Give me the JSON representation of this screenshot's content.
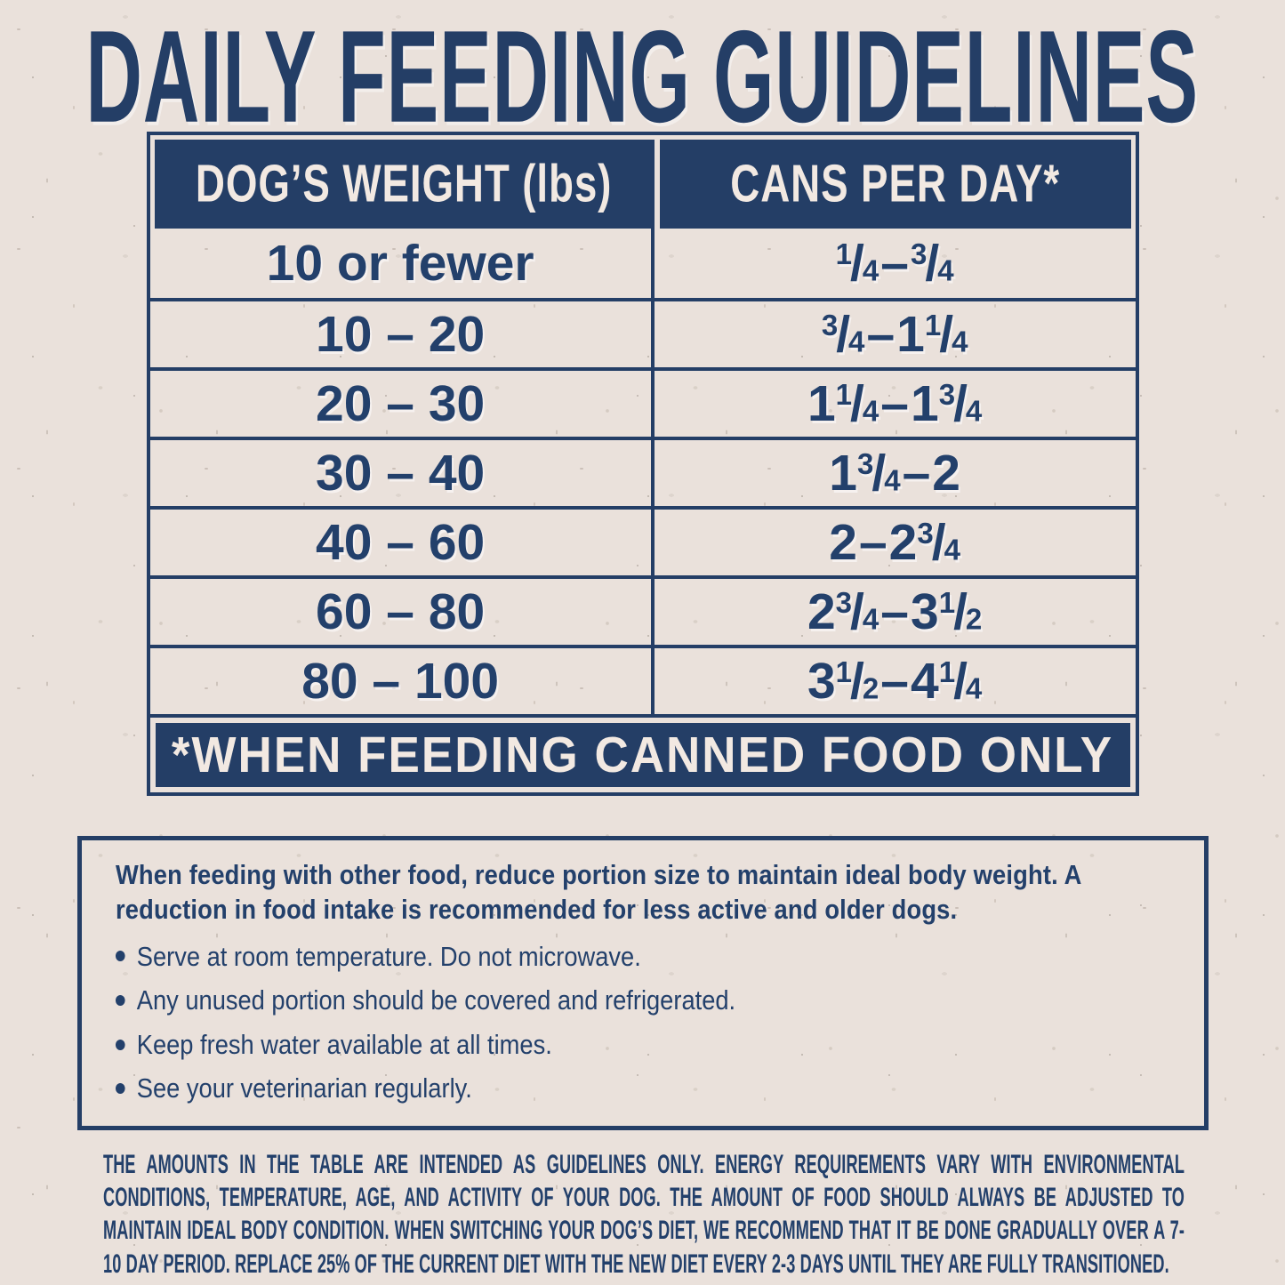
{
  "title": "DAILY FEEDING GUIDELINES",
  "colors": {
    "navy": "#243E66",
    "background": "#EAE1DB",
    "light_text": "#F2E9E2"
  },
  "table": {
    "headers": [
      "DOG’S WEIGHT (lbs)",
      "CANS PER DAY*"
    ],
    "rows": [
      {
        "weight": "10 or fewer",
        "cans": "1/4 – 3/4"
      },
      {
        "weight": "10 – 20",
        "cans": "3/4 – 1 1/4"
      },
      {
        "weight": "20 – 30",
        "cans": "1 1/4 – 1 3/4"
      },
      {
        "weight": "30 – 40",
        "cans": "1 3/4 – 2"
      },
      {
        "weight": "40 – 60",
        "cans": "2 – 2 3/4"
      },
      {
        "weight": "60 – 80",
        "cans": "2 3/4 – 3 1/2"
      },
      {
        "weight": "80 – 100",
        "cans": "3 1/2 – 4 1/4"
      }
    ],
    "footnote": "*WHEN FEEDING CANNED FOOD ONLY"
  },
  "notes": {
    "intro": "When feeding with other food, reduce portion size to maintain ideal body weight. A reduction in food intake is recommended for less active and older dogs.",
    "bullets": [
      "Serve at room temperature. Do not microwave.",
      "Any unused portion should be covered and refrigerated.",
      "Keep fresh water available at all times.",
      "See your veterinarian regularly."
    ]
  },
  "fine_print": "THE AMOUNTS IN THE TABLE ARE INTENDED AS GUIDELINES ONLY. ENERGY REQUIREMENTS VARY WITH ENVIRONMENTAL CONDITIONS, TEMPERATURE, AGE, AND ACTIVITY OF YOUR DOG. THE AMOUNT OF FOOD SHOULD ALWAYS BE ADJUSTED TO MAINTAIN IDEAL BODY CONDITION. WHEN SWITCHING YOUR DOG’S DIET, WE RECOMMEND THAT IT BE DONE GRADUALLY OVER A 7-10 DAY PERIOD. REPLACE 25% OF THE CURRENT DIET WITH THE NEW DIET EVERY 2-3 DAYS UNTIL THEY ARE FULLY TRANSITIONED."
}
